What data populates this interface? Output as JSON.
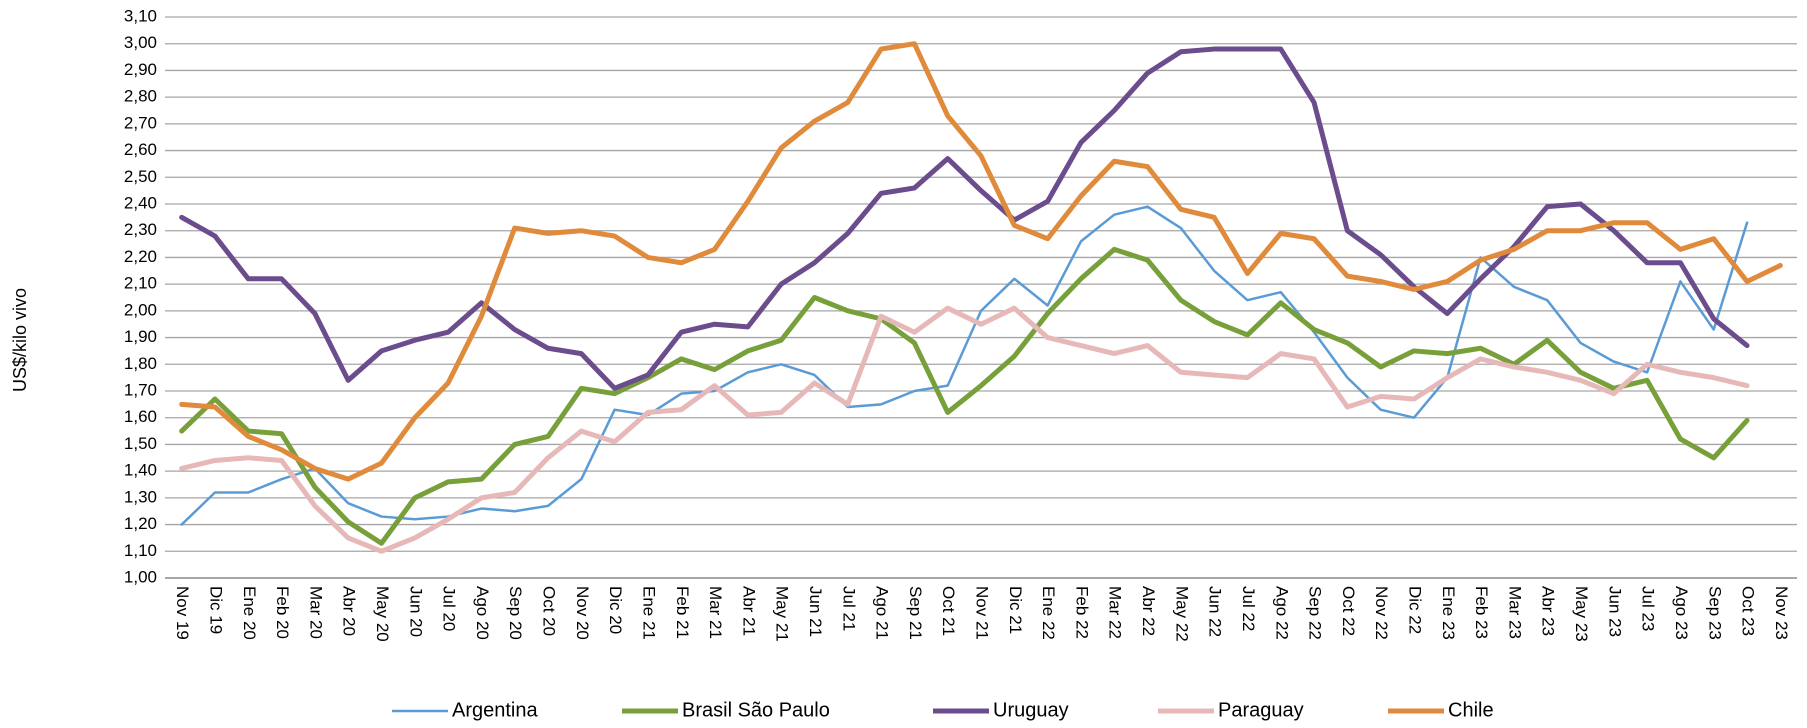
{
  "chart_data": {
    "type": "line",
    "y_label": "US$/kilo vivo",
    "categories": [
      "Nov 19",
      "Dic 19",
      "Ene 20",
      "Feb 20",
      "Mar 20",
      "Abr 20",
      "May 20",
      "Jun 20",
      "Jul 20",
      "Ago 20",
      "Sep 20",
      "Oct 20",
      "Nov 20",
      "Dic 20",
      "Ene 21",
      "Feb 21",
      "Mar 21",
      "Abr 21",
      "May 21",
      "Jun 21",
      "Jul 21",
      "Ago 21",
      "Sep 21",
      "Oct 21",
      "Nov 21",
      "Dic 21",
      "Ene 22",
      "Feb 22",
      "Mar 22",
      "Abr 22",
      "May 22",
      "Jun 22",
      "Jul 22",
      "Ago 22",
      "Sep 22",
      "Oct 22",
      "Nov 22",
      "Dic 22",
      "Ene 23",
      "Feb 23",
      "Mar 23",
      "Abr 23",
      "May 23",
      "Jun 23",
      "Jul 23",
      "Ago 23",
      "Sep 23",
      "Oct 23",
      "Nov 23"
    ],
    "series": [
      {
        "name": "Argentina",
        "color": "#5b9bd5",
        "width": 2.5,
        "values": [
          1.2,
          1.32,
          1.32,
          1.37,
          1.41,
          1.28,
          1.23,
          1.22,
          1.23,
          1.26,
          1.25,
          1.27,
          1.37,
          1.63,
          1.61,
          1.69,
          1.7,
          1.77,
          1.8,
          1.76,
          1.64,
          1.65,
          1.7,
          1.72,
          2.0,
          2.12,
          2.02,
          2.26,
          2.36,
          2.39,
          2.31,
          2.15,
          2.04,
          2.07,
          1.92,
          1.75,
          1.63,
          1.6,
          1.75,
          2.2,
          2.09,
          2.04,
          1.88,
          1.81,
          1.77,
          2.11,
          1.93,
          2.33,
          null
        ]
      },
      {
        "name": "Brasil São Paulo",
        "color": "#77a03a",
        "width": 5,
        "values": [
          1.55,
          1.67,
          1.55,
          1.54,
          1.34,
          1.21,
          1.13,
          1.3,
          1.36,
          1.37,
          1.5,
          1.53,
          1.71,
          1.69,
          1.75,
          1.82,
          1.78,
          1.85,
          1.89,
          2.05,
          2.0,
          1.97,
          1.88,
          1.62,
          1.72,
          1.83,
          1.99,
          2.12,
          2.23,
          2.19,
          2.04,
          1.96,
          1.91,
          2.03,
          1.93,
          1.88,
          1.79,
          1.85,
          1.84,
          1.86,
          1.8,
          1.89,
          1.77,
          1.71,
          1.74,
          1.52,
          1.45,
          1.59,
          null
        ]
      },
      {
        "name": "Uruguay",
        "color": "#6b4c8d",
        "width": 5,
        "values": [
          2.35,
          2.28,
          2.12,
          2.12,
          1.99,
          1.74,
          1.85,
          1.89,
          1.92,
          2.03,
          1.93,
          1.86,
          1.84,
          1.71,
          1.76,
          1.92,
          1.95,
          1.94,
          2.1,
          2.18,
          2.29,
          2.44,
          2.46,
          2.57,
          2.45,
          2.34,
          2.41,
          2.63,
          2.75,
          2.89,
          2.97,
          2.98,
          2.98,
          2.98,
          2.78,
          2.3,
          2.21,
          2.09,
          1.99,
          2.12,
          2.24,
          2.39,
          2.4,
          2.3,
          2.18,
          2.18,
          1.97,
          1.87,
          null
        ]
      },
      {
        "name": "Paraguay",
        "color": "#e6b9b8",
        "width": 5,
        "values": [
          1.41,
          1.44,
          1.45,
          1.44,
          1.27,
          1.15,
          1.1,
          1.15,
          1.22,
          1.3,
          1.32,
          1.45,
          1.55,
          1.51,
          1.62,
          1.63,
          1.72,
          1.61,
          1.62,
          1.73,
          1.65,
          1.98,
          1.92,
          2.01,
          1.95,
          2.01,
          1.9,
          1.87,
          1.84,
          1.87,
          1.77,
          1.76,
          1.75,
          1.84,
          1.82,
          1.64,
          1.68,
          1.67,
          1.75,
          1.82,
          1.79,
          1.77,
          1.74,
          1.69,
          1.8,
          1.77,
          1.75,
          1.72,
          null
        ]
      },
      {
        "name": "Chile",
        "color": "#e08a3c",
        "width": 5,
        "values": [
          1.65,
          1.64,
          1.53,
          1.48,
          1.41,
          1.37,
          1.43,
          1.6,
          1.73,
          1.98,
          2.31,
          2.29,
          2.3,
          2.28,
          2.2,
          2.18,
          2.23,
          2.41,
          2.61,
          2.71,
          2.78,
          2.98,
          3.0,
          2.73,
          2.58,
          2.32,
          2.27,
          2.43,
          2.56,
          2.54,
          2.38,
          2.35,
          2.14,
          2.29,
          2.27,
          2.13,
          2.11,
          2.08,
          2.11,
          2.19,
          2.23,
          2.3,
          2.3,
          2.33,
          2.33,
          2.23,
          2.27,
          2.11,
          2.17
        ]
      }
    ],
    "ylim": [
      1.0,
      3.1
    ],
    "yticks": [
      {
        "value": 1.0,
        "label": "1,00"
      },
      {
        "value": 1.1,
        "label": "1,10"
      },
      {
        "value": 1.2,
        "label": "1,20"
      },
      {
        "value": 1.3,
        "label": "1,30"
      },
      {
        "value": 1.4,
        "label": "1,40"
      },
      {
        "value": 1.5,
        "label": "1,50"
      },
      {
        "value": 1.6,
        "label": "1,60"
      },
      {
        "value": 1.7,
        "label": "1,70"
      },
      {
        "value": 1.8,
        "label": "1,80"
      },
      {
        "value": 1.9,
        "label": "1,90"
      },
      {
        "value": 2.0,
        "label": "2,00"
      },
      {
        "value": 2.1,
        "label": "2,10"
      },
      {
        "value": 2.2,
        "label": "2,20"
      },
      {
        "value": 2.3,
        "label": "2,30"
      },
      {
        "value": 2.4,
        "label": "2,40"
      },
      {
        "value": 2.5,
        "label": "2,50"
      },
      {
        "value": 2.6,
        "label": "2,60"
      },
      {
        "value": 2.7,
        "label": "2,70"
      },
      {
        "value": 2.8,
        "label": "2,80"
      },
      {
        "value": 2.9,
        "label": "2,90"
      },
      {
        "value": 3.0,
        "label": "3,00"
      },
      {
        "value": 3.1,
        "label": "3,10"
      }
    ],
    "grid": true,
    "legend": "bottom"
  }
}
